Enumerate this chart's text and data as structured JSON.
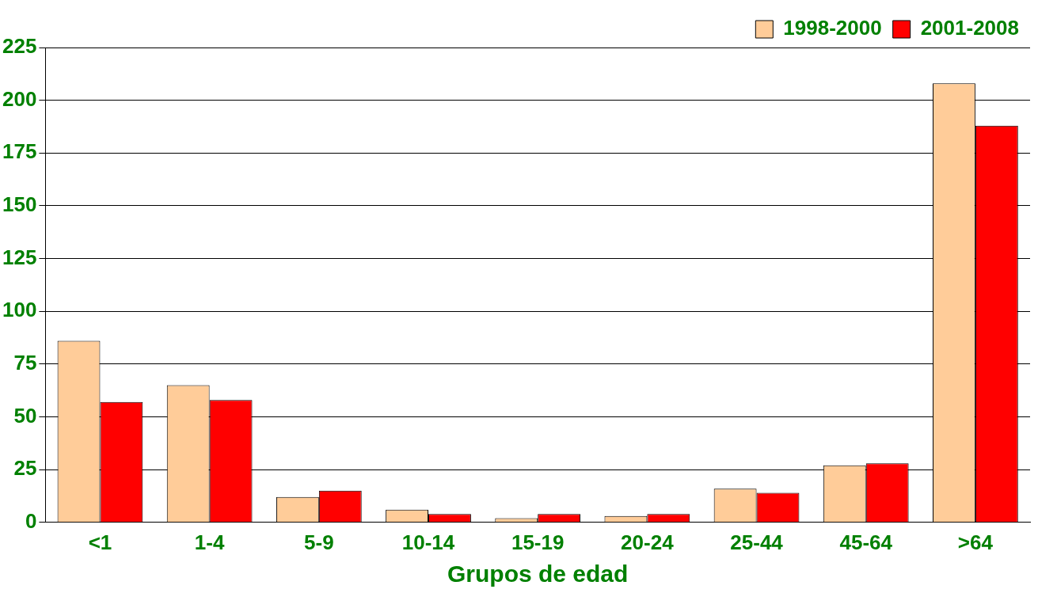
{
  "chart_data": {
    "type": "bar",
    "xlabel": "Grupos de edad",
    "categories": [
      "<1",
      "1-4",
      "5-9",
      "10-14",
      "15-19",
      "20-24",
      "25-44",
      "45-64",
      ">64"
    ],
    "series": [
      {
        "name": "1998-2000",
        "color": "#ffcc99",
        "values": [
          86,
          65,
          12,
          6,
          2,
          3,
          16,
          27,
          208
        ]
      },
      {
        "name": "2001-2008",
        "color": "#ff0000",
        "values": [
          57,
          58,
          15,
          4,
          4,
          4,
          14,
          28,
          188
        ]
      }
    ],
    "ylim": [
      0,
      225
    ],
    "yticks": [
      0,
      25,
      50,
      75,
      100,
      125,
      150,
      175,
      200,
      225
    ],
    "grid": "y",
    "legend": "top right"
  }
}
